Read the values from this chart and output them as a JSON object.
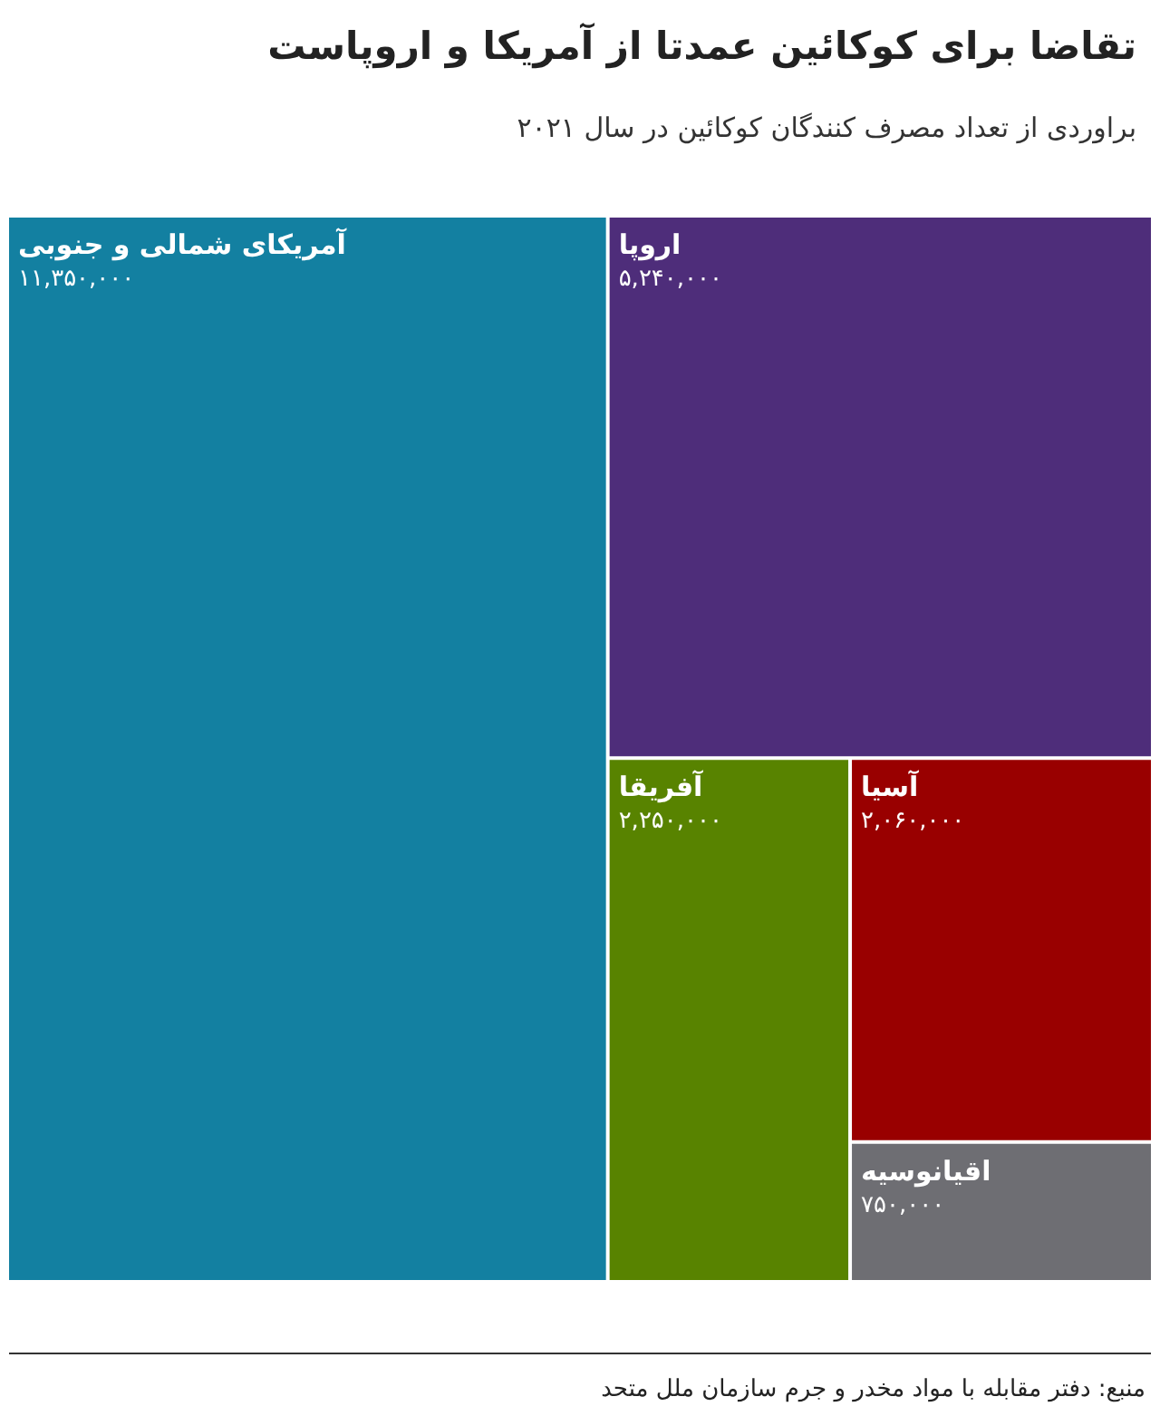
{
  "chart_data": {
    "type": "other",
    "title": "تقاضا برای کوکائین عمدتا از آمریکا و اروپاست",
    "subtitle": "براوردی از تعداد مصرف کنندگان کوکائین در سال ۲۰۲۱",
    "categories": [
      "آمریکای شمالی و جنوبی",
      "اروپا",
      "آفریقا",
      "آسیا",
      "اقیانوسیه"
    ],
    "values": [
      11350000,
      5240000,
      2250000,
      2060000,
      750000
    ],
    "value_labels": [
      "۱۱,۳۵۰,۰۰۰",
      "۵,۲۴۰,۰۰۰",
      "۲,۲۵۰,۰۰۰",
      "۲,۰۶۰,۰۰۰",
      "۷۵۰,۰۰۰"
    ],
    "colors": [
      "#1380a1",
      "#4e2d7a",
      "#588300",
      "#990000",
      "#6e6e73"
    ],
    "annotations": [
      "منبع: دفتر مقابله با مواد مخدر و جرم سازمان ملل متحد"
    ]
  }
}
